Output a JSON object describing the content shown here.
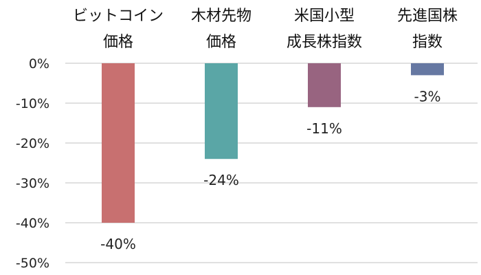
{
  "chart_data": {
    "type": "bar",
    "categories": [
      [
        "ビットコイン",
        "価格"
      ],
      [
        "木材先物",
        "価格"
      ],
      [
        "米国小型",
        "成長株指数"
      ],
      [
        "先進国株",
        "指数"
      ]
    ],
    "values": [
      -40,
      -24,
      -11,
      -3
    ],
    "data_labels": [
      "-40%",
      "-24%",
      "-11%",
      "-3%"
    ],
    "bar_colors": [
      "#c87070",
      "#5aa6a6",
      "#986480",
      "#6678a2"
    ],
    "y_ticks": [
      {
        "value": 0,
        "label": "0%"
      },
      {
        "value": -10,
        "label": "-10%"
      },
      {
        "value": -20,
        "label": "-20%"
      },
      {
        "value": -30,
        "label": "-30%"
      },
      {
        "value": -40,
        "label": "-40%"
      },
      {
        "value": -50,
        "label": "-50%"
      }
    ],
    "ylim": [
      -50,
      0
    ],
    "category_axis_position": "top",
    "grid": true,
    "legend": "none"
  }
}
